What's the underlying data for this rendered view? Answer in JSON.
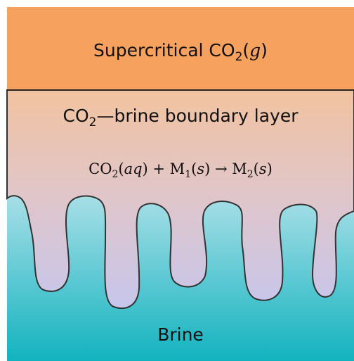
{
  "labels": {
    "top": [
      "Supercritical CO",
      "2",
      "(",
      "g",
      ")"
    ],
    "boundary": [
      "CO",
      "2",
      "—brine boundary layer"
    ],
    "reaction": [
      "CO",
      "2",
      "(",
      "aq",
      ") + M",
      "1",
      "(",
      "s",
      ") → M",
      "2",
      "(",
      "s",
      ")"
    ],
    "bottom": "Brine"
  }
}
